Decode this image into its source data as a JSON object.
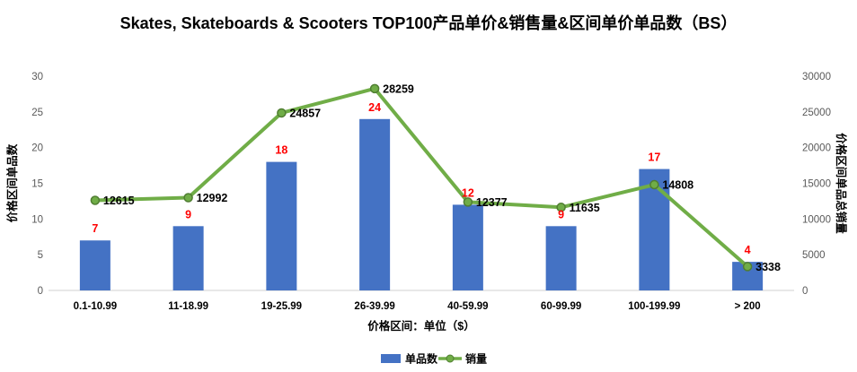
{
  "title": "Skates, Skateboards & Scooters TOP100产品单价&销售量&区间单价单品数（BS）",
  "chart_data": {
    "type": "combo bar+line",
    "categories": [
      "0.1-10.99",
      "11-18.99",
      "19-25.99",
      "26-39.99",
      "40-59.99",
      "60-99.99",
      "100-199.99",
      "> 200"
    ],
    "series": [
      {
        "name": "单品数",
        "type": "bar",
        "axis": "left",
        "color": "#4472C4",
        "label_color": "#FF0000",
        "values": [
          7,
          9,
          18,
          24,
          12,
          9,
          17,
          4
        ]
      },
      {
        "name": "销量",
        "type": "line",
        "axis": "right",
        "color": "#70AD47",
        "marker_stroke": "#507E32",
        "label_color": "#000000",
        "values": [
          12615,
          12992,
          24857,
          28259,
          12377,
          11635,
          14808,
          3338
        ]
      }
    ],
    "left_axis": {
      "title": "价格区间单品数",
      "min": 0,
      "max": 30,
      "step": 5,
      "tick_labels": [
        "0",
        "5",
        "10",
        "15",
        "20",
        "25",
        "30"
      ]
    },
    "right_axis": {
      "title": "价格区间单品总销量",
      "min": 0,
      "max": 30000,
      "step": 5000,
      "tick_labels": [
        "0",
        "5000",
        "10000",
        "15000",
        "20000",
        "25000",
        "30000"
      ]
    },
    "x_axis": {
      "title": "价格区间：单位（$）"
    },
    "legend": {
      "items": [
        "单品数",
        "销量"
      ],
      "position": "bottom"
    },
    "grid": false,
    "tick_label_color": "#595959",
    "axis_line_color": "#D9D9D9"
  }
}
